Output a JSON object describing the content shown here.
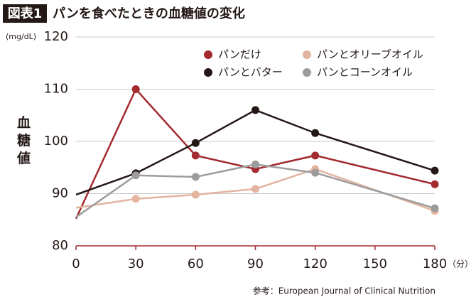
{
  "chart_data": {
    "type": "line",
    "badge": "図表1",
    "title": "パンを食べたときの血糖値の変化",
    "y_unit": "(mg/dL)",
    "y_label": "血糖値",
    "x_unit": "（分）",
    "source": "参考：European Journal of Clinical Nutrition",
    "x": [
      0,
      30,
      60,
      90,
      120,
      180
    ],
    "xlim": [
      0,
      180
    ],
    "xticks": [
      0,
      30,
      60,
      90,
      120,
      150,
      180
    ],
    "ylim": [
      80,
      120
    ],
    "yticks": [
      80,
      90,
      100,
      110,
      120
    ],
    "grid": true,
    "series": [
      {
        "name": "パンだけ",
        "color": "#a32a2e",
        "values": [
          85.2,
          110,
          97.3,
          94.7,
          97.3,
          91.8
        ]
      },
      {
        "name": "パンとオリーブオイル",
        "color": "#e3b49f",
        "values": [
          87.3,
          89,
          89.8,
          90.9,
          94.7,
          86.7
        ]
      },
      {
        "name": "パンとバター",
        "color": "#231815",
        "values": [
          89.8,
          93.9,
          99.7,
          106,
          101.6,
          94.4
        ]
      },
      {
        "name": "パンとコーンオイル",
        "color": "#9c9c9c",
        "values": [
          85.5,
          93.5,
          93.2,
          95.6,
          94,
          87.2
        ]
      }
    ]
  }
}
